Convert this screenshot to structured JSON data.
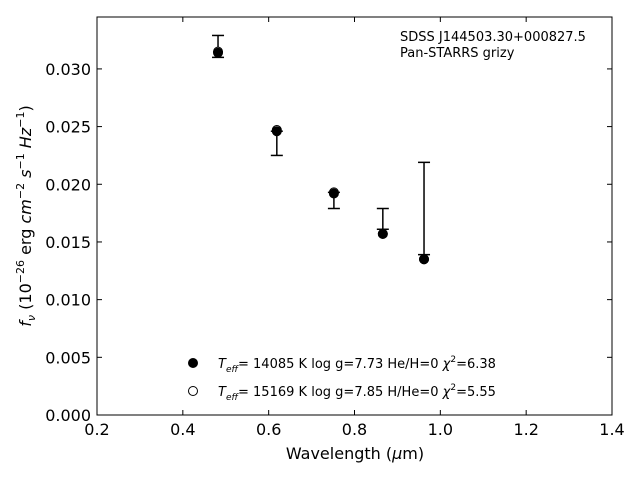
{
  "chart_data": {
    "type": "scatter",
    "annotation": {
      "line1": "SDSS J144503.30+000827.5",
      "line2": "Pan-STARRS grizy"
    },
    "xlabel": {
      "text": "Wavelength (",
      "mu": "μ",
      "unit": "m)"
    },
    "ylabel": {
      "f": "f",
      "nu": "ν",
      "open": " (10",
      "exp1": "−26",
      "erg": " erg ",
      "cm": "cm",
      "exp2": "−2",
      "s": " s",
      "exp3": "−1",
      "hz": " Hz",
      "exp4": "−1",
      "close": ")"
    },
    "xlim": [
      0.2,
      1.4
    ],
    "ylim": [
      0.0,
      0.0345
    ],
    "xticks": [
      "0.2",
      "0.4",
      "0.6",
      "0.8",
      "1.0",
      "1.2",
      "1.4"
    ],
    "yticks": [
      "0.000",
      "0.005",
      "0.010",
      "0.015",
      "0.020",
      "0.025",
      "0.030"
    ],
    "observed": [
      {
        "x": 0.482,
        "y": 0.0314,
        "err_low": 0.031,
        "err_high": 0.0329
      },
      {
        "x": 0.619,
        "y": 0.0246,
        "err_low": 0.0225,
        "err_high": 0.0246
      },
      {
        "x": 0.752,
        "y": 0.0193,
        "err_low": 0.0179,
        "err_high": 0.0193
      },
      {
        "x": 0.866,
        "y": 0.0161,
        "err_low": 0.0161,
        "err_high": 0.0179
      },
      {
        "x": 0.962,
        "y": 0.0139,
        "err_low": 0.0139,
        "err_high": 0.0219
      }
    ],
    "model_filled": {
      "T": "14085",
      "logg": "7.73",
      "comp": "He/H=0",
      "chi2": "6.38",
      "points": [
        {
          "x": 0.482,
          "y": 0.0314
        },
        {
          "x": 0.619,
          "y": 0.0246
        },
        {
          "x": 0.752,
          "y": 0.0192
        },
        {
          "x": 0.866,
          "y": 0.0157
        },
        {
          "x": 0.962,
          "y": 0.0135
        }
      ]
    },
    "model_open": {
      "T": "15169",
      "logg": "7.85",
      "comp": "H/He=0",
      "chi2": "5.55",
      "points": [
        {
          "x": 0.482,
          "y": 0.0315
        },
        {
          "x": 0.619,
          "y": 0.0247
        },
        {
          "x": 0.752,
          "y": 0.0193
        },
        {
          "x": 0.866,
          "y": 0.0157
        },
        {
          "x": 0.962,
          "y": 0.0135
        }
      ]
    },
    "legend": {
      "placement": "lower-center",
      "teff": "T",
      "eff": "eff",
      "logg_label": "log g=",
      "chi": "χ",
      "chi_exp": "2",
      "k_unit": " K"
    },
    "grid": false
  }
}
